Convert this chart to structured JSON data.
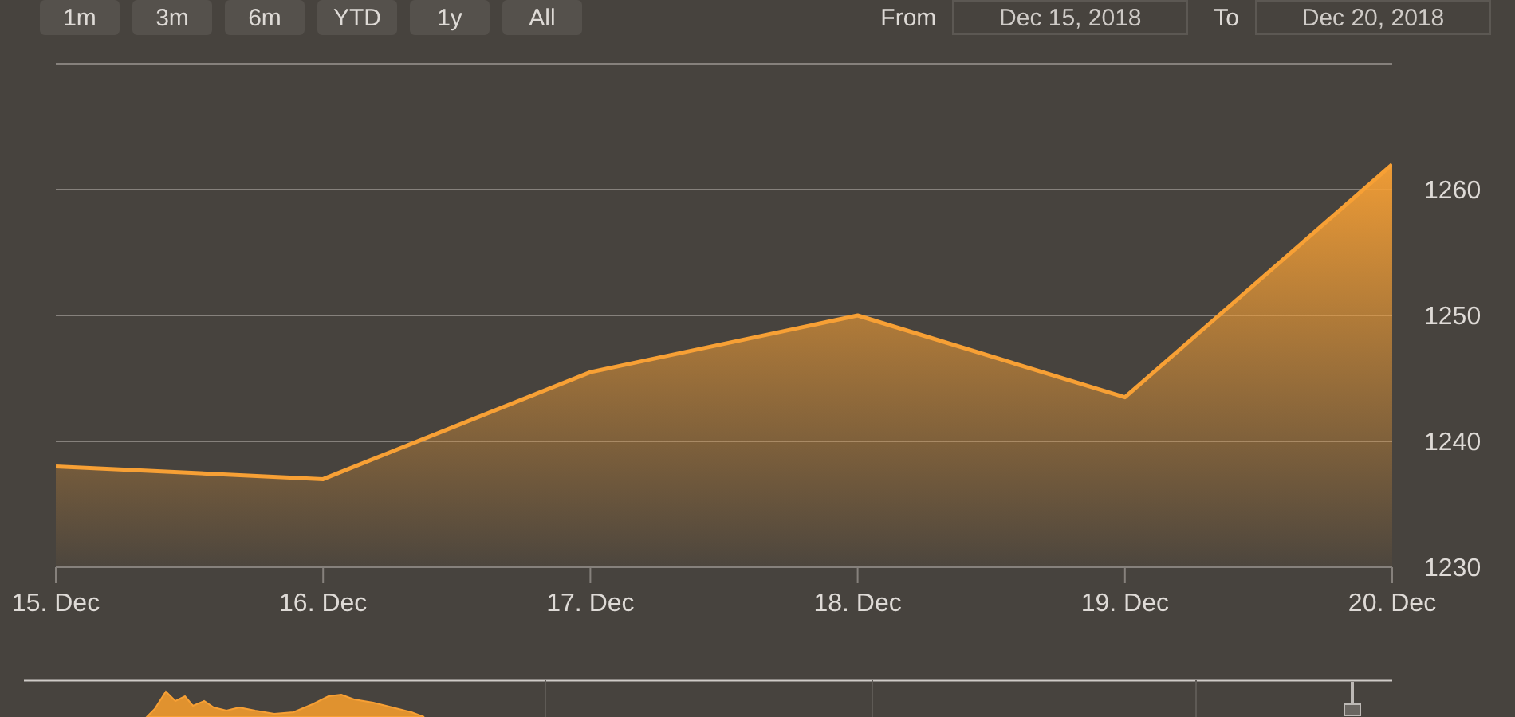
{
  "chart_data": {
    "type": "area",
    "categories": [
      "15. Dec",
      "16. Dec",
      "17. Dec",
      "18. Dec",
      "19. Dec",
      "20. Dec"
    ],
    "values": [
      1238,
      1237,
      1245.5,
      1250,
      1243.5,
      1262
    ],
    "color": "#f7a035",
    "ylim": [
      1230,
      1270
    ],
    "yticks": [
      1230,
      1240,
      1250,
      1260,
      {
        "value": 1270,
        "label": null
      }
    ],
    "grid": "y",
    "marker": "none",
    "annotations": [
      "1m",
      "3m",
      "6m",
      "YTD",
      "1y",
      "All",
      "From",
      "Dec 15, 2018",
      "To",
      "Dec 20, 2018"
    ]
  }
}
